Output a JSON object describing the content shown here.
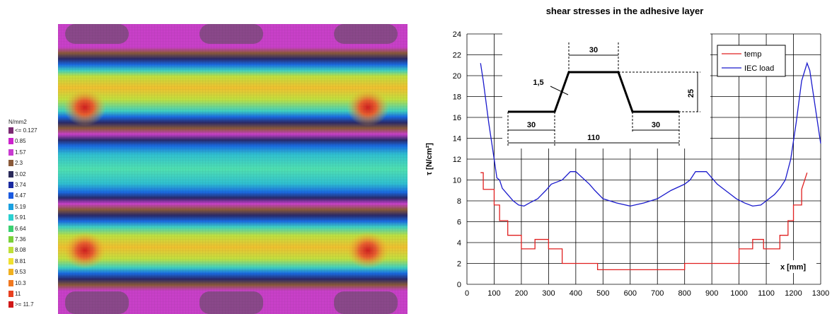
{
  "contour_plot": {
    "legend_unit": "N/mm2",
    "legend_items": [
      {
        "label": "<= 0.127",
        "color": "#7a2a72"
      },
      {
        "label": "0.85",
        "color": "#cc22cc"
      },
      {
        "label": "1.57",
        "color": "#c83ad0"
      },
      {
        "label": "2.3",
        "color": "#8a5a3a"
      },
      {
        "label": "3.02",
        "color": "#2a2a5a"
      },
      {
        "label": "3.74",
        "color": "#1a2aa0"
      },
      {
        "label": "4.47",
        "color": "#1a5ae0"
      },
      {
        "label": "5.19",
        "color": "#1aa0e0"
      },
      {
        "label": "5.91",
        "color": "#2ad0d0"
      },
      {
        "label": "6.64",
        "color": "#3ad070"
      },
      {
        "label": "7.36",
        "color": "#7ad03a"
      },
      {
        "label": "8.08",
        "color": "#c0e03a"
      },
      {
        "label": "8.81",
        "color": "#f0e030"
      },
      {
        "label": "9.53",
        "color": "#f0b020"
      },
      {
        "label": "10.3",
        "color": "#f07820"
      },
      {
        "label": "11",
        "color": "#e84020"
      },
      {
        "label": ">= 11.7",
        "color": "#d01818"
      }
    ]
  },
  "chart_data": {
    "type": "line",
    "title": "shear stresses in the adhesive layer",
    "xlabel": "x [mm]",
    "ylabel": "τ [N/cm²]",
    "xlim": [
      0,
      1300
    ],
    "ylim": [
      0,
      24
    ],
    "xticks": [
      "0",
      "100",
      "200",
      "300",
      "400",
      "500",
      "600",
      "700",
      "800",
      "900",
      "1000",
      "1100",
      "1200",
      "1300"
    ],
    "yticks": [
      "0",
      "2",
      "4",
      "6",
      "8",
      "10",
      "12",
      "14",
      "16",
      "18",
      "20",
      "22",
      "24"
    ],
    "grid": true,
    "legend_position": "top-right",
    "series": [
      {
        "name": "temp",
        "color": "#e02020",
        "x": [
          50,
          60,
          60,
          100,
          100,
          120,
          120,
          150,
          150,
          200,
          200,
          210,
          210,
          250,
          250,
          300,
          300,
          350,
          350,
          480,
          480,
          800,
          800,
          810,
          810,
          1000,
          1000,
          1050,
          1050,
          1090,
          1090,
          1150,
          1150,
          1180,
          1180,
          1200,
          1200,
          1230,
          1230,
          1250
        ],
        "y": [
          10.7,
          10.7,
          9.1,
          9.1,
          7.6,
          7.6,
          6.1,
          6.1,
          4.7,
          4.7,
          3.4,
          3.4,
          3.4,
          3.4,
          4.3,
          4.3,
          3.4,
          3.4,
          2.0,
          2.0,
          1.4,
          1.4,
          2.0,
          2.0,
          2.0,
          2.0,
          3.4,
          3.4,
          4.3,
          4.3,
          3.4,
          3.4,
          4.7,
          4.7,
          6.1,
          6.1,
          7.6,
          7.6,
          9.1,
          10.7
        ]
      },
      {
        "name": "IEC load",
        "color": "#1a1acc",
        "x": [
          50,
          60,
          80,
          100,
          110,
          120,
          130,
          150,
          170,
          190,
          210,
          230,
          260,
          290,
          310,
          350,
          380,
          400,
          450,
          470,
          500,
          550,
          600,
          650,
          700,
          750,
          800,
          820,
          840,
          880,
          920,
          950,
          970,
          990,
          1020,
          1050,
          1080,
          1100,
          1130,
          1150,
          1170,
          1190,
          1210,
          1230,
          1250,
          1260,
          1280,
          1300
        ],
        "y": [
          21.2,
          19.5,
          15.5,
          12.0,
          10.2,
          10.0,
          9.2,
          8.6,
          8.0,
          7.6,
          7.5,
          7.8,
          8.2,
          9.0,
          9.6,
          10.0,
          10.8,
          10.8,
          9.6,
          9.0,
          8.2,
          7.8,
          7.5,
          7.8,
          8.2,
          9.0,
          9.6,
          10.0,
          10.8,
          10.8,
          9.6,
          9.0,
          8.6,
          8.2,
          7.8,
          7.5,
          7.6,
          8.0,
          8.6,
          9.2,
          10.0,
          12.0,
          15.5,
          19.5,
          21.2,
          20.5,
          17.0,
          13.5
        ]
      }
    ],
    "inset": {
      "labels": [
        "30",
        "1,5",
        "25",
        "30",
        "110",
        "30"
      ]
    },
    "annotation": "x [mm]"
  }
}
